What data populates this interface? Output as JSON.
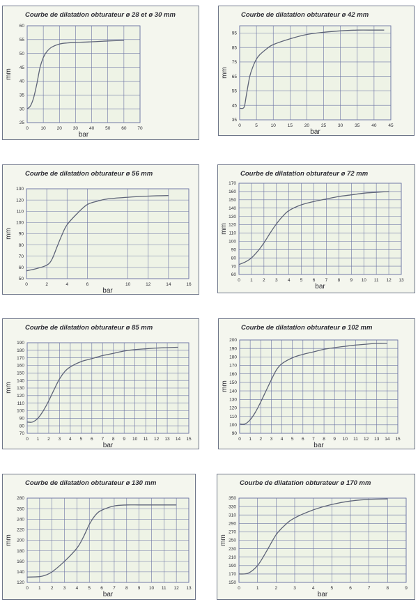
{
  "chart_data": [
    {
      "type": "line",
      "title": "Courbe de dilatation obturateur ø 28 et ø 30 mm",
      "xlabel": "bar",
      "ylabel": "mm",
      "xlim": [
        0,
        70
      ],
      "ylim": [
        25,
        60
      ],
      "xticks": [
        0,
        10,
        20,
        30,
        40,
        50,
        60,
        70
      ],
      "yticks": [
        25,
        30,
        35,
        40,
        45,
        50,
        55,
        60
      ],
      "grid": true,
      "series": [
        {
          "x": [
            0,
            2,
            4,
            6,
            8,
            10,
            12,
            15,
            20,
            25,
            30,
            40,
            50,
            60
          ],
          "y": [
            30,
            31,
            34,
            39,
            45,
            48.5,
            50.5,
            52.2,
            53.4,
            53.8,
            54,
            54.2,
            54.5,
            54.7
          ]
        }
      ]
    },
    {
      "type": "line",
      "title": "Courbe de dilatation obturateur ø 42 mm",
      "xlabel": "bar",
      "ylabel": "mm",
      "xlim": [
        0,
        45
      ],
      "ylim": [
        35,
        100
      ],
      "xticks": [
        0,
        5,
        10,
        15,
        20,
        25,
        30,
        35,
        40,
        45
      ],
      "yticks": [
        35,
        45,
        55,
        65,
        75,
        85,
        95
      ],
      "grid": true,
      "series": [
        {
          "x": [
            0,
            1,
            1.5,
            2,
            3,
            4,
            5,
            6,
            8,
            10,
            15,
            20,
            25,
            30,
            35,
            40,
            43
          ],
          "y": [
            43,
            43,
            45,
            52,
            65,
            72,
            77,
            80,
            84,
            87,
            91,
            94,
            95.5,
            96.5,
            97,
            97,
            97
          ]
        }
      ]
    },
    {
      "type": "line",
      "title": "Courbe de dilatation obturateur ø 56 mm",
      "xlabel": "bar",
      "ylabel": "mm",
      "xlim": [
        0,
        16
      ],
      "ylim": [
        50,
        130
      ],
      "xticks": [
        0,
        2,
        4,
        6,
        10,
        12,
        14,
        16
      ],
      "yticks": [
        50,
        60,
        70,
        80,
        90,
        100,
        110,
        120,
        130
      ],
      "grid": true,
      "series": [
        {
          "x": [
            0,
            1,
            2,
            2.5,
            3,
            3.5,
            4,
            5,
            6,
            7,
            8,
            10,
            12,
            14
          ],
          "y": [
            57,
            59,
            62,
            67,
            78,
            89,
            98,
            108,
            116,
            119,
            121,
            122.5,
            123.5,
            124
          ]
        }
      ]
    },
    {
      "type": "line",
      "title": "Courbe de dilatation obturateur ø 72 mm",
      "xlabel": "bar",
      "ylabel": "mm",
      "xlim": [
        0,
        13
      ],
      "ylim": [
        60,
        170
      ],
      "xticks": [
        0,
        1,
        2,
        3,
        4,
        5,
        6,
        7,
        8,
        9,
        10,
        11,
        12,
        13
      ],
      "yticks": [
        60,
        70,
        80,
        90,
        100,
        110,
        120,
        130,
        140,
        150,
        160,
        170
      ],
      "grid": true,
      "series": [
        {
          "x": [
            0,
            0.5,
            1,
            1.5,
            2,
            2.5,
            3,
            3.5,
            4,
            5,
            6,
            7,
            8,
            9,
            10,
            11,
            12
          ],
          "y": [
            72,
            75,
            80,
            88,
            98,
            110,
            121,
            130,
            137,
            144,
            148,
            151,
            154,
            156,
            158,
            159,
            160
          ]
        }
      ]
    },
    {
      "type": "line",
      "title": "Courbe de dilatation obturateur ø 85 mm",
      "xlabel": "bar",
      "ylabel": "mm",
      "xlim": [
        0,
        15
      ],
      "ylim": [
        70,
        190
      ],
      "xticks": [
        0,
        1,
        2,
        3,
        4,
        5,
        6,
        7,
        8,
        9,
        10,
        11,
        12,
        13,
        14,
        15
      ],
      "yticks": [
        70,
        80,
        90,
        100,
        110,
        120,
        130,
        140,
        150,
        160,
        170,
        180,
        190
      ],
      "grid": true,
      "series": [
        {
          "x": [
            0,
            0.5,
            1,
            1.5,
            2,
            2.5,
            3,
            3.5,
            4,
            5,
            6,
            7,
            8,
            9,
            10,
            11,
            12,
            13,
            14
          ],
          "y": [
            85,
            85,
            90,
            100,
            113,
            128,
            142,
            152,
            158,
            165,
            169,
            173,
            176,
            179,
            181,
            182,
            183,
            183.5,
            184
          ]
        }
      ]
    },
    {
      "type": "line",
      "title": "Courbe de dilatation obturateur ø 102 mm",
      "xlabel": "bar",
      "ylabel": "mm",
      "xlim": [
        0,
        15
      ],
      "ylim": [
        90,
        200
      ],
      "xticks": [
        0,
        1,
        2,
        3,
        4,
        5,
        6,
        7,
        8,
        9,
        10,
        11,
        12,
        13,
        14,
        15
      ],
      "yticks": [
        90,
        100,
        110,
        120,
        130,
        140,
        150,
        160,
        170,
        180,
        190,
        200
      ],
      "grid": true,
      "series": [
        {
          "x": [
            0,
            0.5,
            1,
            1.5,
            2,
            2.5,
            3,
            3.5,
            4,
            5,
            6,
            7,
            8,
            9,
            10,
            11,
            12,
            13,
            14
          ],
          "y": [
            101,
            101,
            106,
            115,
            127,
            140,
            153,
            165,
            172,
            179,
            183,
            186,
            189,
            191,
            192.5,
            194,
            195,
            196,
            196
          ]
        }
      ]
    },
    {
      "type": "line",
      "title": "Courbe de dilatation obturateur ø 130 mm",
      "xlabel": "bar",
      "ylabel": "mm",
      "xlim": [
        0,
        13
      ],
      "ylim": [
        120,
        280
      ],
      "xticks": [
        0,
        1,
        2,
        3,
        4,
        5,
        6,
        7,
        8,
        9,
        10,
        11,
        12,
        13
      ],
      "yticks": [
        120,
        140,
        160,
        180,
        200,
        220,
        240,
        260,
        280
      ],
      "grid": true,
      "series": [
        {
          "x": [
            0,
            1,
            1.5,
            2,
            3,
            4,
            4.5,
            5,
            5.5,
            6,
            7,
            8,
            9,
            10,
            11,
            12
          ],
          "y": [
            130,
            131,
            134,
            140,
            160,
            185,
            205,
            230,
            248,
            257,
            265,
            267,
            267,
            267,
            267,
            267
          ]
        }
      ]
    },
    {
      "type": "line",
      "title": "Courbe de dilatation obturateur ø 170 mm",
      "xlabel": "bar",
      "ylabel": "mm",
      "xlim": [
        0,
        9
      ],
      "ylim": [
        150,
        350
      ],
      "xticks": [
        0,
        1,
        2,
        3,
        4,
        5,
        6,
        7,
        8,
        9
      ],
      "yticks": [
        150,
        170,
        190,
        210,
        230,
        250,
        270,
        290,
        310,
        330,
        350
      ],
      "grid": true,
      "series": [
        {
          "x": [
            0,
            0.5,
            1,
            1.5,
            2,
            2.5,
            3,
            4,
            5,
            6,
            7,
            8
          ],
          "y": [
            170,
            172,
            190,
            225,
            263,
            287,
            303,
            322,
            335,
            343,
            347,
            348
          ]
        }
      ]
    }
  ]
}
